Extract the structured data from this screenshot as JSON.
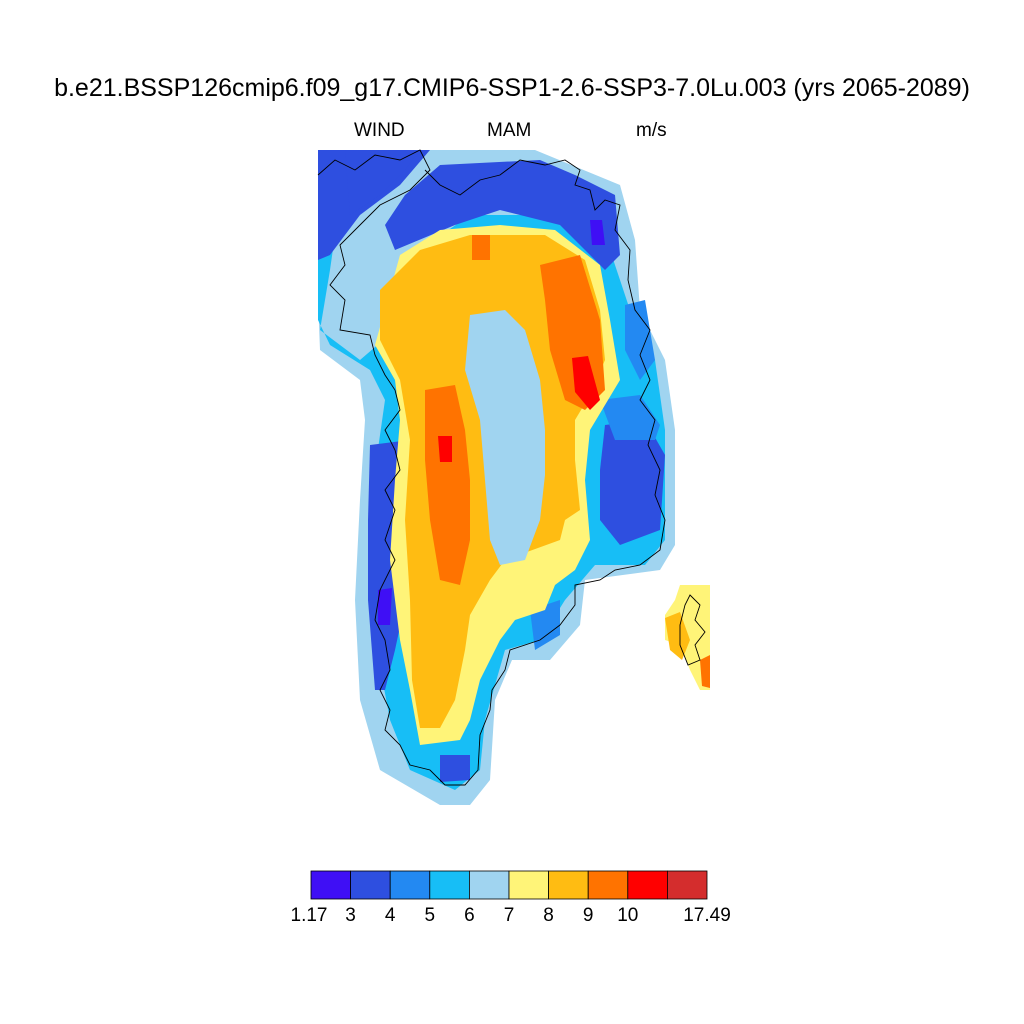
{
  "title": "b.e21.BSSP126cmip6.f09_g17.CMIP6-SSP1-2.6-SSP3-7.0Lu.003 (yrs 2065-2089)",
  "left_string": "WIND",
  "center_string": "MAM",
  "right_string": "m/s",
  "colorbar": {
    "colors": [
      "#3f0ff5",
      "#2e4fe0",
      "#2389f2",
      "#17bef6",
      "#a0d4f0",
      "#fff478",
      "#ffbc12",
      "#ff7300",
      "#ff0000",
      "#d42d2d"
    ],
    "labels": [
      "1.17",
      "3",
      "4",
      "5",
      "6",
      "7",
      "8",
      "9",
      "10",
      "17.49"
    ]
  }
}
